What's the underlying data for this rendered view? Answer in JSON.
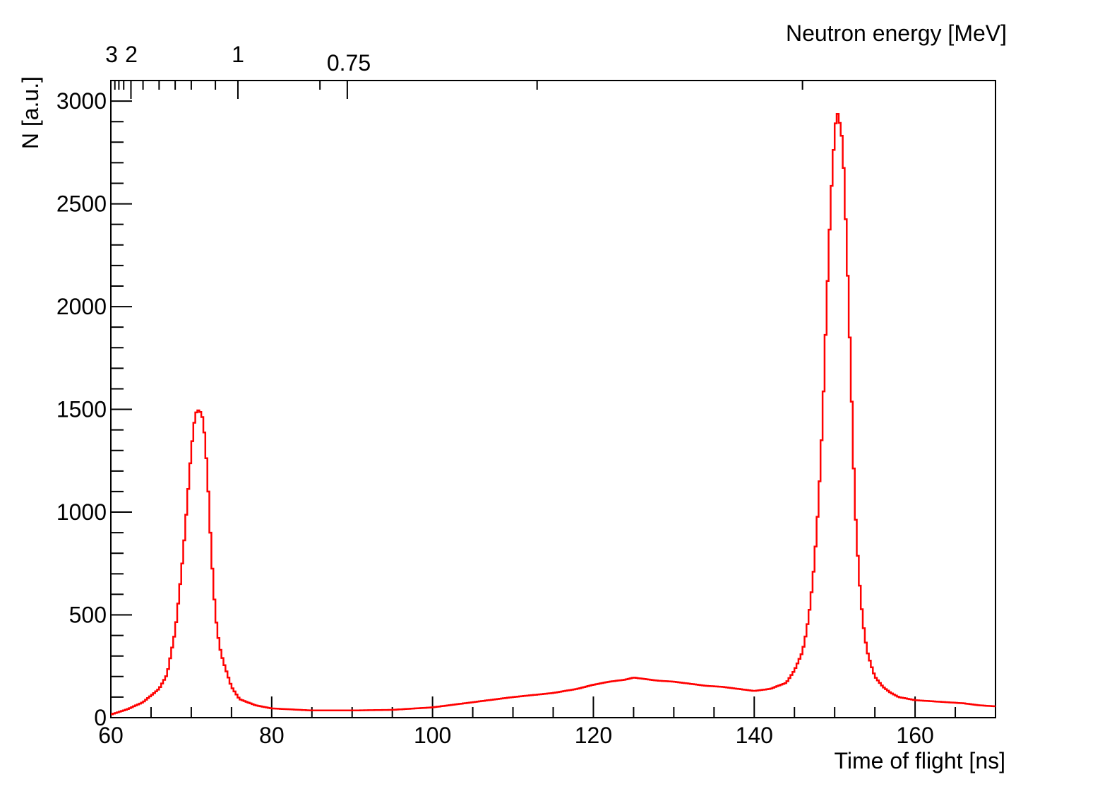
{
  "chart_data": {
    "type": "line",
    "style": "step-histogram",
    "color": "#ff0000",
    "xlabel": "Time of flight [ns]",
    "ylabel": "N [a.u.]",
    "top_axis_label": "Neutron energy [MeV]",
    "xlim": [
      60,
      170
    ],
    "ylim": [
      0,
      3100
    ],
    "x_ticks": [
      60,
      80,
      100,
      120,
      140,
      160
    ],
    "y_ticks": [
      0,
      500,
      1000,
      1500,
      2000,
      2500,
      3000
    ],
    "top_ticks": [
      {
        "label": "3",
        "x": 60.0
      },
      {
        "label": "2",
        "x": 62.5
      },
      {
        "label": "1",
        "x": 75.8
      },
      {
        "label": "0.75",
        "x": 89.4
      }
    ],
    "series": [
      {
        "x": [
          60,
          62,
          64,
          66,
          67,
          68,
          68.5,
          69,
          69.5,
          70,
          70.5,
          71,
          71.5,
          72,
          72.5,
          73,
          73.5,
          74,
          75,
          76,
          78,
          80,
          85,
          90,
          95,
          100,
          105,
          110,
          115,
          118,
          120,
          122,
          124,
          125,
          126,
          128,
          130,
          132,
          134,
          136,
          138,
          140,
          142,
          144,
          145,
          146,
          146.5,
          147,
          147.5,
          148,
          148.5,
          149,
          149.5,
          150,
          150.3,
          150.6,
          151,
          151.5,
          152,
          152.5,
          153,
          153.5,
          154,
          154.5,
          155,
          156,
          157,
          158,
          160,
          162,
          164,
          166,
          168,
          170
        ],
        "y": [
          15,
          40,
          75,
          140,
          210,
          420,
          600,
          800,
          1050,
          1300,
          1480,
          1500,
          1450,
          1200,
          800,
          500,
          350,
          270,
          150,
          90,
          60,
          45,
          35,
          35,
          38,
          50,
          75,
          100,
          120,
          140,
          160,
          175,
          185,
          195,
          190,
          180,
          175,
          165,
          155,
          150,
          140,
          130,
          140,
          170,
          230,
          320,
          420,
          560,
          760,
          1050,
          1450,
          2000,
          2500,
          2850,
          2950,
          2900,
          2800,
          2300,
          1700,
          1050,
          700,
          470,
          330,
          260,
          200,
          150,
          120,
          100,
          85,
          80,
          75,
          70,
          60,
          55
        ]
      }
    ]
  }
}
